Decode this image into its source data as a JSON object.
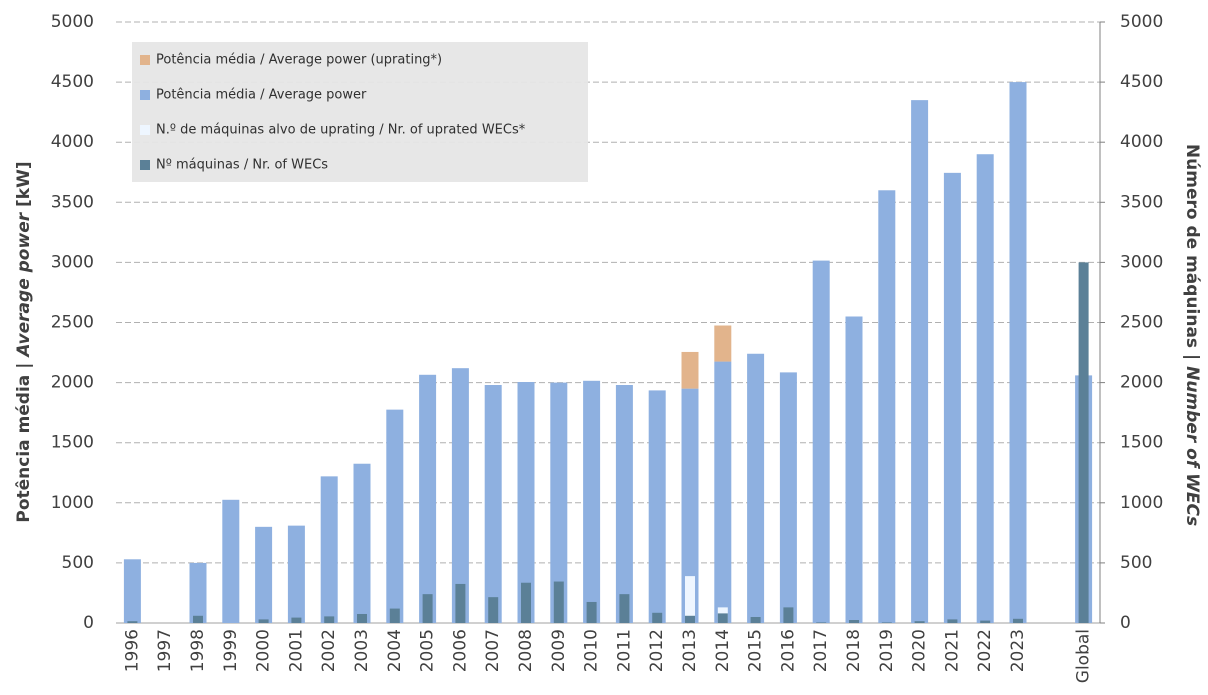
{
  "chart_data": {
    "type": "bar",
    "ylabel": [
      "Potência média | ",
      "Average power",
      " [kW]"
    ],
    "y2label": [
      "Número de máquinas | ",
      "Number of WECs"
    ],
    "categories": [
      "1996",
      "1997",
      "1998",
      "1999",
      "2000",
      "2001",
      "2002",
      "2003",
      "2004",
      "2005",
      "2006",
      "2007",
      "2008",
      "2009",
      "2010",
      "2011",
      "2012",
      "2013",
      "2014",
      "2015",
      "2016",
      "2017",
      "2018",
      "2019",
      "2020",
      "2021",
      "2022",
      "2023",
      null,
      "Global"
    ],
    "series": [
      {
        "name": "Potência média / Average power (uprating*)",
        "color": "#e2b48c",
        "axis": "y",
        "values": [
          null,
          null,
          null,
          null,
          null,
          null,
          null,
          null,
          null,
          null,
          null,
          null,
          null,
          null,
          null,
          null,
          null,
          305,
          300,
          null,
          null,
          null,
          null,
          null,
          null,
          null,
          null,
          null,
          null,
          null
        ]
      },
      {
        "name": "Potência média / Average power",
        "color": "#8eb0e0",
        "axis": "y",
        "values": [
          530,
          null,
          500,
          1025,
          800,
          810,
          1220,
          1325,
          1775,
          2065,
          2120,
          1980,
          2005,
          2000,
          2015,
          1980,
          1935,
          1950,
          2175,
          2240,
          2085,
          3015,
          2550,
          3600,
          4350,
          3745,
          3900,
          4500,
          null,
          2060
        ]
      },
      {
        "name": "N.º de máquinas alvo de uprating / Nr. of uprated WECs*",
        "color": "#eef6ff",
        "axis": "y2",
        "values": [
          null,
          null,
          null,
          null,
          null,
          null,
          null,
          null,
          null,
          null,
          null,
          null,
          null,
          null,
          null,
          null,
          null,
          390,
          130,
          null,
          null,
          null,
          null,
          null,
          null,
          null,
          null,
          null,
          null,
          null
        ]
      },
      {
        "name": "Nº máquinas / Nr. of WECs",
        "color": "#5b8097",
        "axis": "y2",
        "values": [
          15,
          null,
          60,
          null,
          30,
          45,
          55,
          75,
          120,
          240,
          325,
          215,
          335,
          345,
          175,
          240,
          85,
          60,
          80,
          50,
          130,
          5,
          25,
          5,
          15,
          30,
          20,
          35,
          null,
          3000
        ]
      }
    ],
    "ylim": [
      0,
      5000
    ],
    "yticks": [
      0,
      500,
      1000,
      1500,
      2000,
      2500,
      3000,
      3500,
      4000,
      4500,
      5000
    ],
    "y2lim": [
      0,
      5000
    ],
    "y2ticks": [
      0,
      500,
      1000,
      1500,
      2000,
      2500,
      3000,
      3500,
      4000,
      4500,
      5000
    ],
    "grid": true,
    "legend": "upper left"
  }
}
